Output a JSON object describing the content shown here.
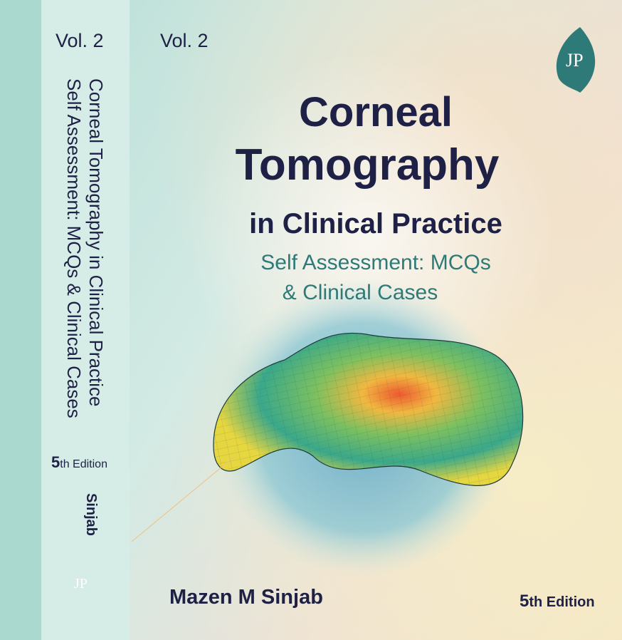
{
  "spine": {
    "volume": "Vol. 2",
    "title": "Corneal Tomography in Clinical Practice",
    "subtitle": "Self Assessment: MCQs & Clinical Cases",
    "edition": {
      "number": "5",
      "suffix": "th Edition"
    },
    "author": "Sinjab",
    "publisher": "JP"
  },
  "cover": {
    "volume": "Vol. 2",
    "publisher": "JP",
    "title": [
      "Corneal",
      "Tomography",
      "in Clinical Practice"
    ],
    "subtitle": [
      "Self Assessment: MCQs",
      "& Clinical Cases"
    ],
    "author": "Mazen M Sinjab",
    "edition": {
      "number": "5",
      "suffix": "th Edition"
    }
  }
}
